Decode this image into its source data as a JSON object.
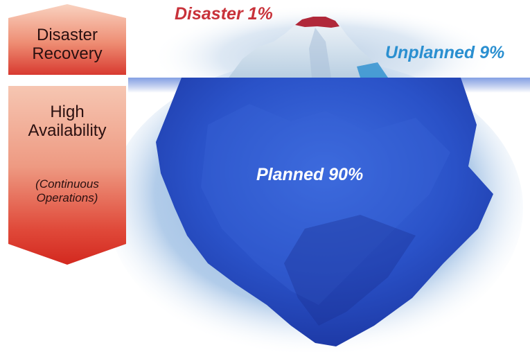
{
  "labels": {
    "disaster": "Disaster 1%",
    "unplanned": "Unplanned 9%",
    "planned": "Planned 90%"
  },
  "boxes": {
    "disaster_recovery": {
      "line1": "Disaster",
      "line2": "Recovery"
    },
    "high_availability": {
      "line1": "High",
      "line2": "Availability",
      "sub1": "(Continuous",
      "sub2": "Operations)"
    }
  },
  "colors": {
    "disaster": "#c8323a",
    "unplanned": "#2a8fd0",
    "planned_text": "#ffffff",
    "box_light": "#f6c3b0",
    "box_dark": "#d83a30",
    "iceberg_under": "#2a4fc8",
    "iceberg_above": "#dbe9f4",
    "water_glow": "#a9c8e8"
  }
}
